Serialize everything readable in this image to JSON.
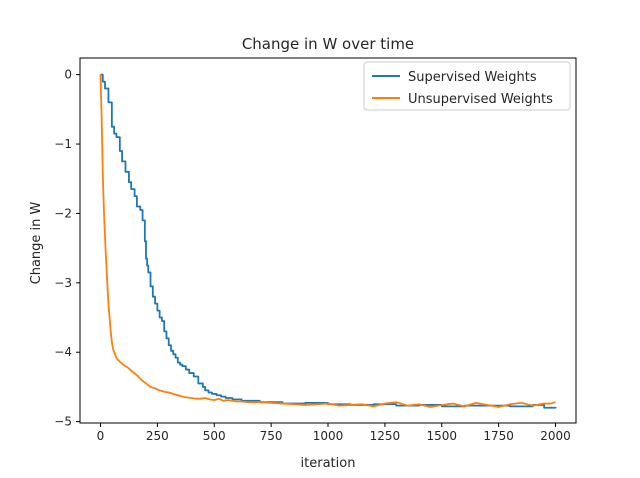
{
  "chart_data": {
    "type": "line",
    "title": "Change in W over time",
    "xlabel": "iteration",
    "ylabel": "Change in W",
    "xlim": [
      -90,
      2090
    ],
    "ylim": [
      -5.02,
      0.24
    ],
    "xticks": [
      0,
      250,
      500,
      750,
      1000,
      1250,
      1500,
      1750,
      2000
    ],
    "xtick_labels": [
      "0",
      "250",
      "500",
      "750",
      "1000",
      "1250",
      "1500",
      "1750",
      "2000"
    ],
    "yticks": [
      0,
      -1,
      -2,
      -3,
      -4,
      -5
    ],
    "ytick_labels": [
      "0",
      "−1",
      "−2",
      "−3",
      "−4",
      "−5"
    ],
    "grid": false,
    "legend_position": "top-right",
    "series": [
      {
        "name": "Supervised Weights",
        "color": "#1f77b4",
        "step": true,
        "x": [
          0,
          10,
          20,
          35,
          50,
          60,
          70,
          85,
          95,
          110,
          125,
          135,
          150,
          160,
          175,
          185,
          195,
          200,
          205,
          210,
          220,
          230,
          240,
          250,
          260,
          270,
          280,
          290,
          300,
          310,
          320,
          330,
          340,
          350,
          360,
          375,
          390,
          410,
          430,
          450,
          460,
          475,
          490,
          510,
          530,
          550,
          580,
          620,
          700,
          800,
          900,
          1000,
          1100,
          1200,
          1300,
          1400,
          1500,
          1600,
          1700,
          1800,
          1900,
          1950,
          2000
        ],
        "y": [
          0,
          -0.1,
          -0.2,
          -0.4,
          -0.75,
          -0.85,
          -0.9,
          -1.1,
          -1.25,
          -1.4,
          -1.55,
          -1.65,
          -1.75,
          -1.9,
          -1.95,
          -2.1,
          -2.4,
          -2.65,
          -2.75,
          -2.85,
          -3.05,
          -3.2,
          -3.3,
          -3.4,
          -3.5,
          -3.55,
          -3.7,
          -3.8,
          -3.9,
          -3.98,
          -4.03,
          -4.08,
          -4.15,
          -4.18,
          -4.2,
          -4.25,
          -4.3,
          -4.35,
          -4.45,
          -4.5,
          -4.55,
          -4.58,
          -4.6,
          -4.62,
          -4.64,
          -4.66,
          -4.68,
          -4.7,
          -4.72,
          -4.74,
          -4.73,
          -4.75,
          -4.76,
          -4.75,
          -4.77,
          -4.76,
          -4.78,
          -4.77,
          -4.77,
          -4.78,
          -4.76,
          -4.8,
          -4.79
        ]
      },
      {
        "name": "Unsupervised Weights",
        "color": "#ff7f0e",
        "step": false,
        "x": [
          0,
          5,
          10,
          15,
          20,
          25,
          30,
          35,
          40,
          45,
          50,
          55,
          60,
          70,
          80,
          90,
          100,
          120,
          140,
          160,
          180,
          200,
          220,
          240,
          260,
          280,
          300,
          320,
          340,
          360,
          380,
          400,
          420,
          440,
          460,
          480,
          500,
          520,
          540,
          560,
          580,
          600,
          620,
          650,
          700,
          750,
          800,
          850,
          900,
          950,
          1000,
          1050,
          1100,
          1150,
          1200,
          1250,
          1300,
          1350,
          1400,
          1450,
          1500,
          1550,
          1600,
          1650,
          1700,
          1750,
          1800,
          1850,
          1900,
          1950,
          1980,
          2000
        ],
        "y": [
          0,
          -0.6,
          -1.4,
          -1.95,
          -2.35,
          -2.7,
          -3.0,
          -3.3,
          -3.5,
          -3.7,
          -3.85,
          -3.95,
          -4.0,
          -4.08,
          -4.12,
          -4.15,
          -4.18,
          -4.22,
          -4.28,
          -4.33,
          -4.4,
          -4.45,
          -4.5,
          -4.52,
          -4.55,
          -4.57,
          -4.58,
          -4.6,
          -4.62,
          -4.64,
          -4.65,
          -4.66,
          -4.67,
          -4.67,
          -4.66,
          -4.68,
          -4.69,
          -4.67,
          -4.7,
          -4.69,
          -4.7,
          -4.71,
          -4.71,
          -4.72,
          -4.72,
          -4.73,
          -4.74,
          -4.75,
          -4.76,
          -4.75,
          -4.74,
          -4.77,
          -4.76,
          -4.75,
          -4.78,
          -4.74,
          -4.72,
          -4.77,
          -4.75,
          -4.79,
          -4.76,
          -4.74,
          -4.78,
          -4.73,
          -4.76,
          -4.79,
          -4.75,
          -4.73,
          -4.77,
          -4.74,
          -4.74,
          -4.72
        ]
      }
    ]
  }
}
